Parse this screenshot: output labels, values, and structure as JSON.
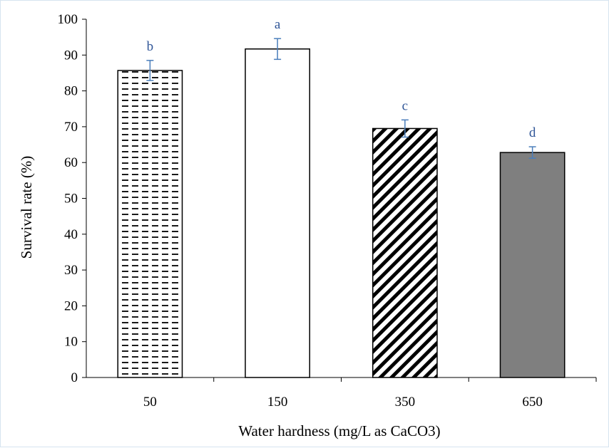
{
  "chart_data": {
    "type": "bar",
    "title": "",
    "xlabel": "Water hardness (mg/L as CaCO3)",
    "ylabel": "Survival rate (%)",
    "ylim": [
      0,
      100
    ],
    "yticks": [
      "0",
      "10",
      "20",
      "30",
      "40",
      "50",
      "60",
      "70",
      "80",
      "90",
      "100"
    ],
    "categories": [
      "50",
      "150",
      "350",
      "650"
    ],
    "values": [
      85.7,
      91.7,
      69.5,
      62.8
    ],
    "errors": [
      2.8,
      2.9,
      2.4,
      1.6
    ],
    "significance_letters": [
      "b",
      "a",
      "c",
      "d"
    ],
    "fills": [
      "dashed-horizontal",
      "white",
      "diagonal-stripes",
      "gray"
    ],
    "grid": false,
    "legend": "none"
  },
  "colors": {
    "bar_outline": "#000000",
    "solid_bar": "#7f7f7f",
    "error_bar": "#4a7ebb",
    "letter": "#2f5597",
    "axis": "#000000"
  }
}
